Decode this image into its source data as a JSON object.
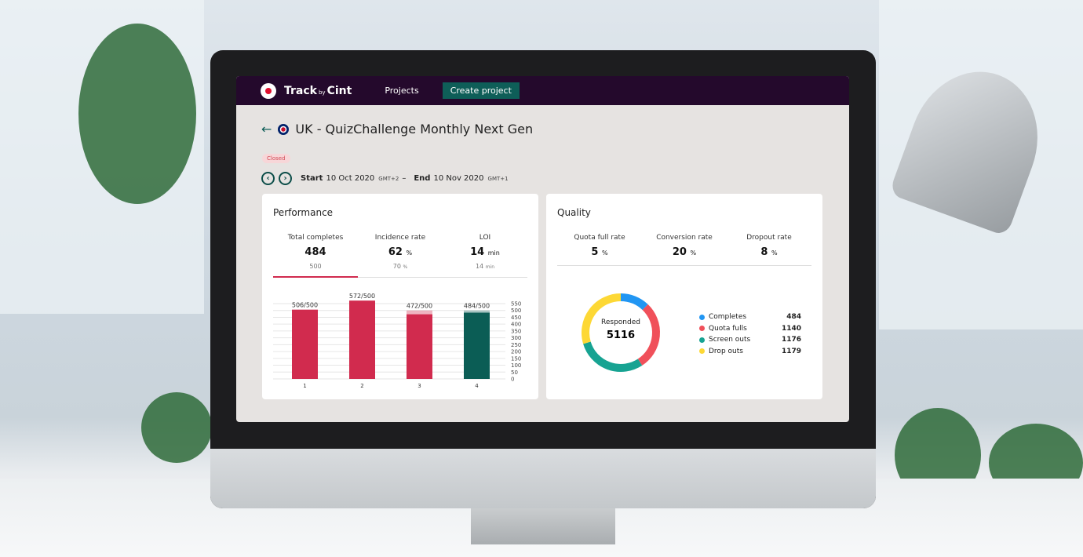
{
  "app": {
    "brand": "Track",
    "brand_by": "by",
    "brand_suffix": "Cint",
    "nav_projects": "Projects",
    "create_project": "Create project"
  },
  "project": {
    "title": "UK - QuizChallenge Monthly Next Gen",
    "status": "Closed",
    "start_label": "Start",
    "start_date": "10 Oct 2020",
    "start_tz": "GMT+2",
    "dash": "–",
    "end_label": "End",
    "end_date": "10 Nov 2020",
    "end_tz": "GMT+1"
  },
  "performance": {
    "title": "Performance",
    "metrics": [
      {
        "label": "Total completes",
        "value": "484",
        "unit": "",
        "sub": "500",
        "sub_unit": ""
      },
      {
        "label": "Incidence rate",
        "value": "62",
        "unit": "%",
        "sub": "70",
        "sub_unit": "%"
      },
      {
        "label": "LOI",
        "value": "14",
        "unit": "min",
        "sub": "14",
        "sub_unit": "min"
      }
    ]
  },
  "quality": {
    "title": "Quality",
    "metrics": [
      {
        "label": "Quota full rate",
        "value": "5",
        "unit": "%"
      },
      {
        "label": "Conversion rate",
        "value": "20",
        "unit": "%"
      },
      {
        "label": "Dropout rate",
        "value": "8",
        "unit": "%"
      }
    ],
    "center_label": "Responded",
    "center_value": "5116",
    "legend": [
      {
        "label": "Completes",
        "value": "484",
        "color": "#2196f3"
      },
      {
        "label": "Quota fulls",
        "value": "1140",
        "color": "#f0505a"
      },
      {
        "label": "Screen outs",
        "value": "1176",
        "color": "#17a392"
      },
      {
        "label": "Drop outs",
        "value": "1179",
        "color": "#fdd835"
      }
    ]
  },
  "chart_data": {
    "type": "bar",
    "categories": [
      "1",
      "2",
      "3",
      "4"
    ],
    "values": [
      506,
      572,
      472,
      484
    ],
    "target": 500,
    "labels": [
      "506/500",
      "572/500",
      "472/500",
      "484/500"
    ],
    "colors": [
      "#d12b4e",
      "#d12b4e",
      "#d12b4e",
      "#0b5d55"
    ],
    "yticks": [
      0,
      50,
      100,
      150,
      200,
      250,
      300,
      350,
      400,
      450,
      500,
      550
    ],
    "ylim": [
      0,
      550
    ]
  }
}
